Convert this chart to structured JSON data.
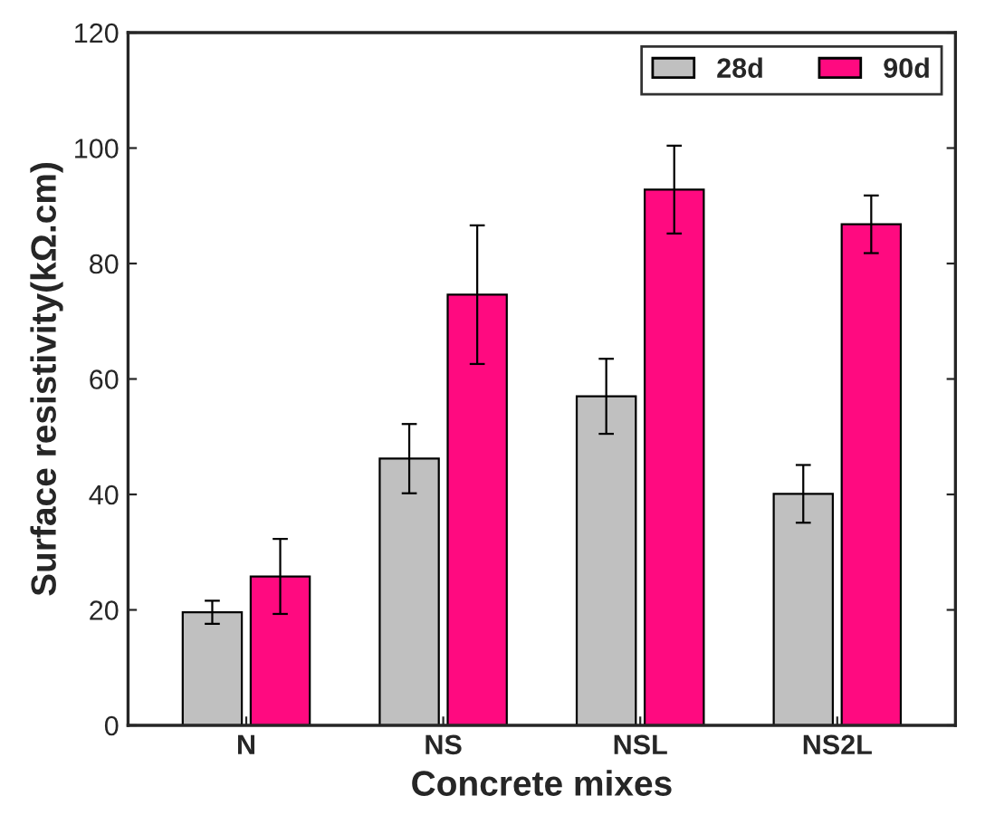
{
  "chart_data": {
    "type": "bar",
    "xlabel": "Concrete mixes",
    "ylabel": "Surface resistivity(kΩ.cm)",
    "categories": [
      "N",
      "NS",
      "NSL",
      "NS2L"
    ],
    "series": [
      {
        "name": "28d",
        "color": "#c0c0c0",
        "values": [
          19.6,
          46.2,
          57,
          40.1
        ],
        "errors": [
          2,
          6,
          6.5,
          5
        ]
      },
      {
        "name": "90d",
        "color": "#ff0a80",
        "values": [
          25.8,
          74.6,
          92.8,
          86.8
        ],
        "errors": [
          6.5,
          12,
          7.6,
          5
        ]
      }
    ],
    "ylim": [
      0,
      120
    ],
    "yticks": [
      0,
      20,
      40,
      60,
      80,
      100,
      120
    ],
    "grid": false,
    "legend": "top right"
  }
}
